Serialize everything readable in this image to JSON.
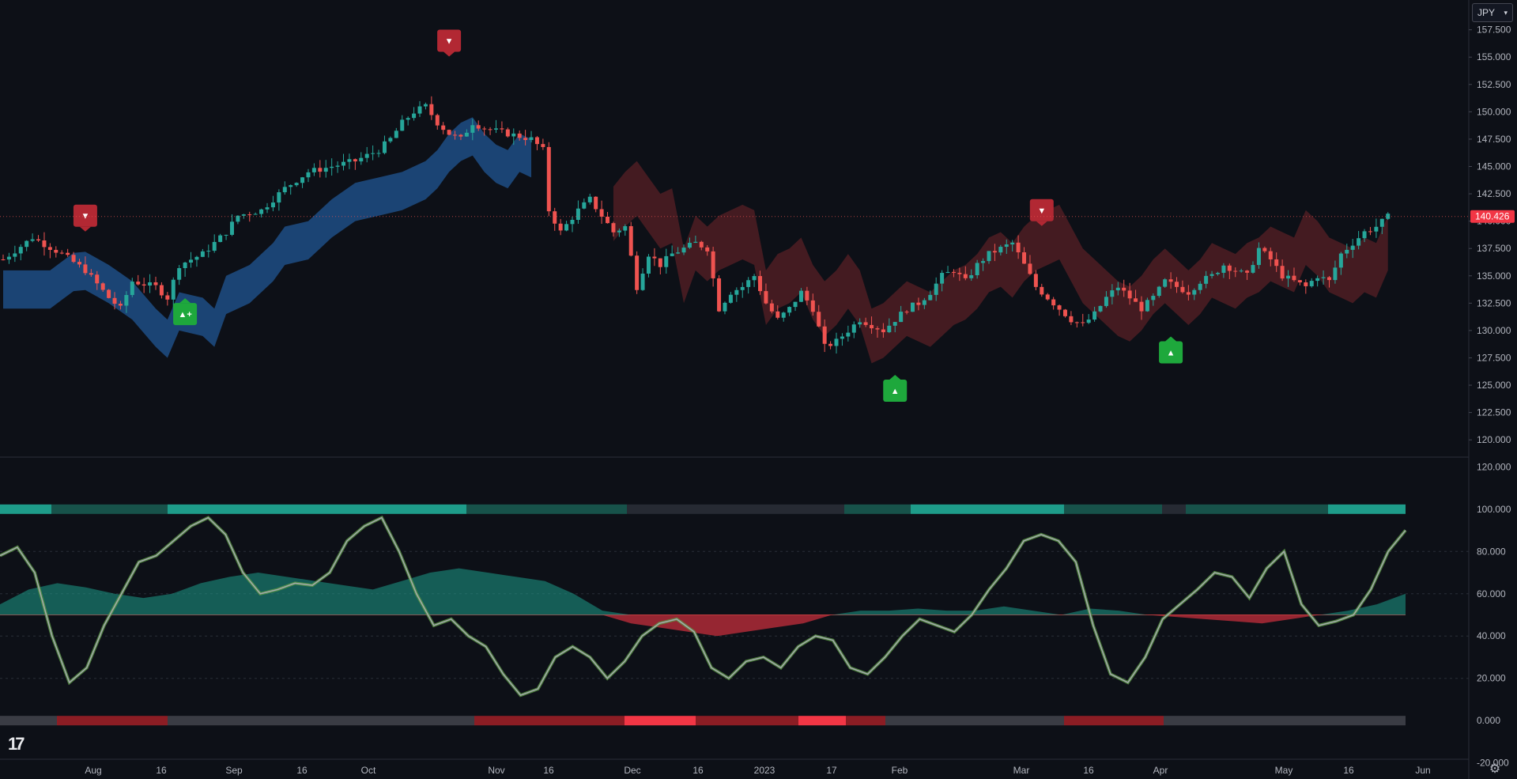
{
  "toolbar": {
    "currency": "JPY"
  },
  "logo": "17",
  "chart_data": [
    {
      "type": "candlestick",
      "title": "",
      "y_axis_ticks": [
        "157.500",
        "155.000",
        "152.500",
        "150.000",
        "147.500",
        "145.000",
        "142.500",
        "140.000",
        "137.500",
        "135.000",
        "132.500",
        "130.000",
        "127.500",
        "125.000",
        "122.500",
        "120.000"
      ],
      "ylim": [
        119.0,
        159.5
      ],
      "last_price": "140.426",
      "x_axis_ticks": [
        "Aug",
        "16",
        "Sep",
        "16",
        "Oct",
        "Nov",
        "16",
        "Dec",
        "16",
        "2023",
        "17",
        "Feb",
        "Mar",
        "16",
        "Apr",
        "May",
        "16",
        "Jun"
      ],
      "close_path": [
        [
          0,
          136.5
        ],
        [
          5,
          138.5
        ],
        [
          10,
          137
        ],
        [
          14,
          135.5
        ],
        [
          18,
          133
        ],
        [
          20,
          132
        ],
        [
          22,
          134.5
        ],
        [
          26,
          134
        ],
        [
          28,
          133
        ],
        [
          30,
          136
        ],
        [
          34,
          137
        ],
        [
          38,
          139
        ],
        [
          40,
          140.5
        ],
        [
          44,
          141
        ],
        [
          48,
          143
        ],
        [
          52,
          144.5
        ],
        [
          56,
          145
        ],
        [
          60,
          145.5
        ],
        [
          64,
          146.5
        ],
        [
          66,
          147.5
        ],
        [
          68,
          149
        ],
        [
          70,
          150
        ],
        [
          72,
          150.5
        ],
        [
          74,
          149
        ],
        [
          76,
          148
        ],
        [
          78,
          147.5
        ],
        [
          80,
          149
        ],
        [
          82,
          148.5
        ],
        [
          86,
          148
        ],
        [
          90,
          147.5
        ],
        [
          92,
          146.5
        ],
        [
          93,
          141
        ],
        [
          95,
          139
        ],
        [
          98,
          141
        ],
        [
          100,
          142
        ],
        [
          102,
          140.5
        ],
        [
          104,
          139
        ],
        [
          106,
          139.5
        ],
        [
          108,
          134
        ],
        [
          110,
          137
        ],
        [
          112,
          136
        ],
        [
          114,
          137
        ],
        [
          116,
          137.5
        ],
        [
          118,
          138
        ],
        [
          120,
          137.5
        ],
        [
          122,
          132
        ],
        [
          124,
          133.5
        ],
        [
          126,
          134
        ],
        [
          128,
          135
        ],
        [
          130,
          132.5
        ],
        [
          132,
          131
        ],
        [
          134,
          132
        ],
        [
          136,
          133.5
        ],
        [
          138,
          132
        ],
        [
          140,
          128.5
        ],
        [
          142,
          129
        ],
        [
          144,
          130
        ],
        [
          146,
          131
        ],
        [
          148,
          130.5
        ],
        [
          150,
          130
        ],
        [
          152,
          131
        ],
        [
          154,
          132
        ],
        [
          156,
          132.5
        ],
        [
          158,
          133.5
        ],
        [
          160,
          135
        ],
        [
          162,
          135.5
        ],
        [
          164,
          134.5
        ],
        [
          166,
          136
        ],
        [
          168,
          137
        ],
        [
          170,
          137.5
        ],
        [
          172,
          138
        ],
        [
          174,
          136
        ],
        [
          176,
          134
        ],
        [
          178,
          133
        ],
        [
          180,
          132
        ],
        [
          182,
          131
        ],
        [
          184,
          130.5
        ],
        [
          186,
          131.5
        ],
        [
          188,
          133
        ],
        [
          190,
          134
        ],
        [
          192,
          133
        ],
        [
          194,
          132
        ],
        [
          196,
          133
        ],
        [
          198,
          134.5
        ],
        [
          200,
          134
        ],
        [
          202,
          133.5
        ],
        [
          204,
          134.5
        ],
        [
          206,
          135
        ],
        [
          208,
          136
        ],
        [
          210,
          135.5
        ],
        [
          212,
          135
        ],
        [
          214,
          137.5
        ],
        [
          216,
          136.5
        ],
        [
          218,
          135
        ],
        [
          220,
          134.5
        ],
        [
          222,
          134
        ],
        [
          224,
          135
        ],
        [
          226,
          134.5
        ],
        [
          228,
          137
        ],
        [
          230,
          138
        ],
        [
          232,
          139
        ],
        [
          234,
          139.5
        ],
        [
          236,
          140.4
        ]
      ],
      "signals": [
        {
          "label": "▼",
          "type": "sell",
          "x": 14,
          "price": 140.5
        },
        {
          "label": "▲+",
          "type": "strong-buy",
          "x": 31,
          "price": 131.5
        },
        {
          "label": "▼",
          "type": "sell",
          "x": 76,
          "price": 156.5
        },
        {
          "label": "▲",
          "type": "buy",
          "x": 152,
          "price": 124.5
        },
        {
          "label": "▼",
          "type": "sell",
          "x": 177,
          "price": 141
        },
        {
          "label": "▲",
          "type": "buy",
          "x": 199,
          "price": 128
        }
      ],
      "bull_cloud": {
        "from_x": 0,
        "to_x": 90,
        "color": "#1d4a7e"
      },
      "bear_cloud": {
        "from_x": 104,
        "to_x": 236,
        "color": "#4a1d22"
      }
    },
    {
      "type": "line",
      "title": "",
      "y_axis_ticks": [
        "120.000",
        "100.000",
        "80.000",
        "60.000",
        "40.000",
        "20.000",
        "0.000",
        "-20.000"
      ],
      "ylim": [
        -22,
        122
      ],
      "series": [
        {
          "type": "line",
          "values": [
            78,
            82,
            70,
            40,
            18,
            25,
            45,
            60,
            75,
            78,
            85,
            92,
            96,
            88,
            70,
            60,
            62,
            65,
            64,
            70,
            85,
            92,
            96,
            80,
            60,
            45,
            48,
            40,
            35,
            22,
            12,
            15,
            30,
            35,
            30,
            20,
            28,
            40,
            46,
            48,
            42,
            25,
            20,
            28,
            30,
            25,
            35,
            40,
            38,
            25,
            22,
            30,
            40,
            48,
            45,
            42,
            50,
            62,
            72,
            85,
            88,
            85,
            75,
            45,
            22,
            18,
            30,
            48,
            55,
            62,
            70,
            68,
            58,
            72,
            80,
            55,
            45,
            47,
            50,
            62,
            80,
            90
          ]
        },
        {
          "type": "area",
          "values": [
            55,
            62,
            65,
            63,
            60,
            58,
            60,
            65,
            68,
            70,
            68,
            66,
            64,
            62,
            66,
            70,
            72,
            70,
            68,
            66,
            60,
            52,
            46,
            44,
            42,
            40,
            42,
            44,
            46,
            50,
            52,
            52,
            53,
            52,
            52,
            54,
            52,
            50,
            53,
            52,
            50,
            49,
            48,
            47,
            46,
            48,
            50,
            52,
            55,
            60
          ]
        }
      ]
    }
  ]
}
